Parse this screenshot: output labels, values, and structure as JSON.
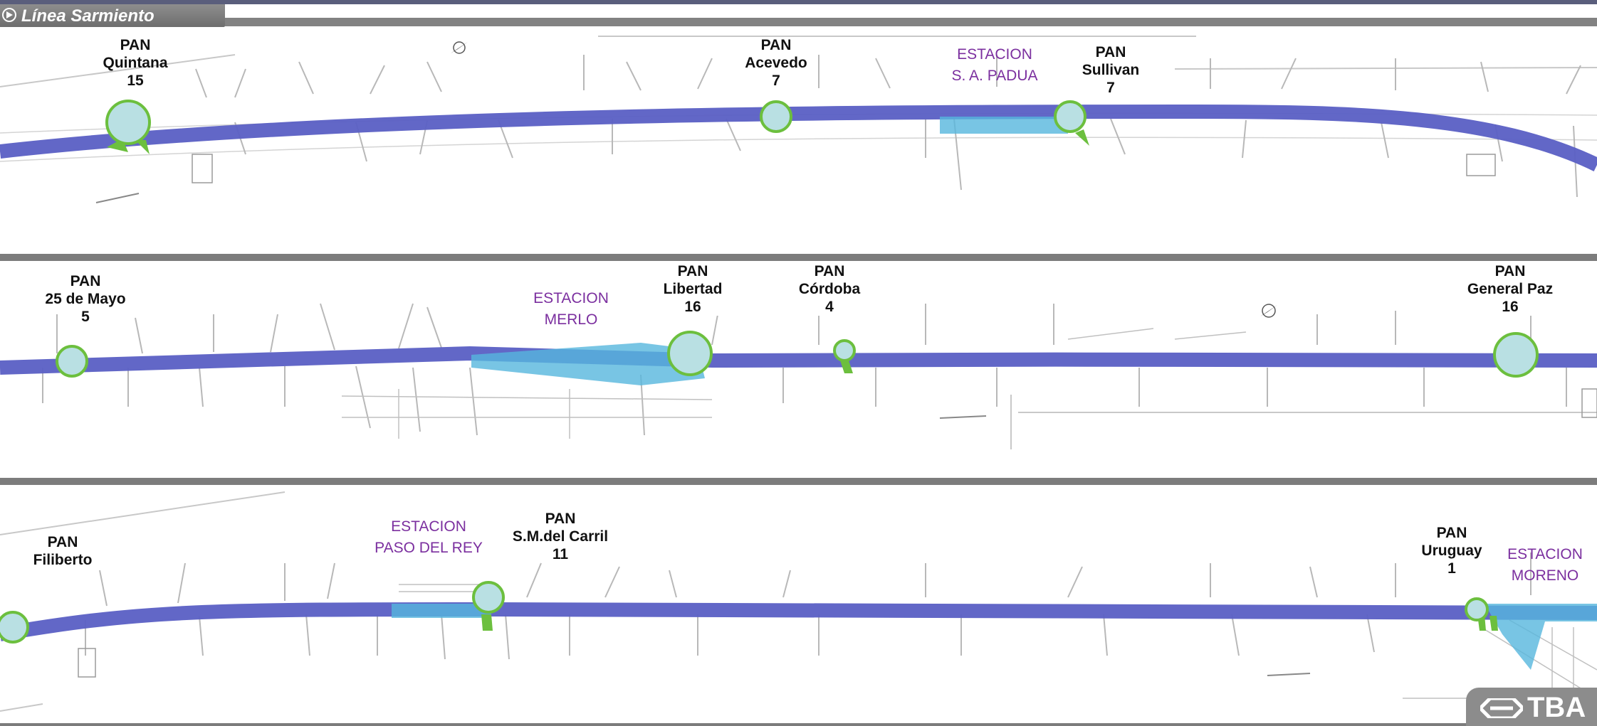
{
  "header": {
    "title": "Línea Sarmiento"
  },
  "panels": [
    {
      "crossings": [
        {
          "lines": [
            "PAN",
            "Quintana",
            "15"
          ]
        },
        {
          "lines": [
            "PAN",
            "Acevedo",
            "7"
          ]
        },
        {
          "lines": [
            "PAN",
            "Sullivan",
            "7"
          ]
        }
      ],
      "stations": [
        {
          "lines": [
            "ESTACION",
            "S. A. PADUA"
          ]
        }
      ]
    },
    {
      "crossings": [
        {
          "lines": [
            "PAN",
            "25 de Mayo",
            "5"
          ]
        },
        {
          "lines": [
            "PAN",
            "Libertad",
            "16"
          ]
        },
        {
          "lines": [
            "PAN",
            "Córdoba",
            "4"
          ]
        },
        {
          "lines": [
            "PAN",
            "General Paz",
            "16"
          ]
        }
      ],
      "stations": [
        {
          "lines": [
            "ESTACION",
            "MERLO"
          ]
        }
      ]
    },
    {
      "crossings": [
        {
          "lines": [
            "PAN",
            "Filiberto"
          ]
        },
        {
          "lines": [
            "PAN",
            "S.M.del Carril",
            "11"
          ]
        },
        {
          "lines": [
            "PAN",
            "Uruguay",
            "1"
          ]
        }
      ],
      "stations": [
        {
          "lines": [
            "ESTACION",
            "PASO DEL REY"
          ]
        },
        {
          "lines": [
            "ESTACION",
            "MORENO"
          ]
        }
      ]
    }
  ],
  "logo": {
    "text": "TBA"
  },
  "colors": {
    "track": "#5a5fc4",
    "station_area": "#56b6dd",
    "crossing_fill": "#b9e0e3",
    "crossing_stroke": "#6cbf3e",
    "station_label": "#7b2f9f",
    "divider": "#7c7c7c"
  }
}
